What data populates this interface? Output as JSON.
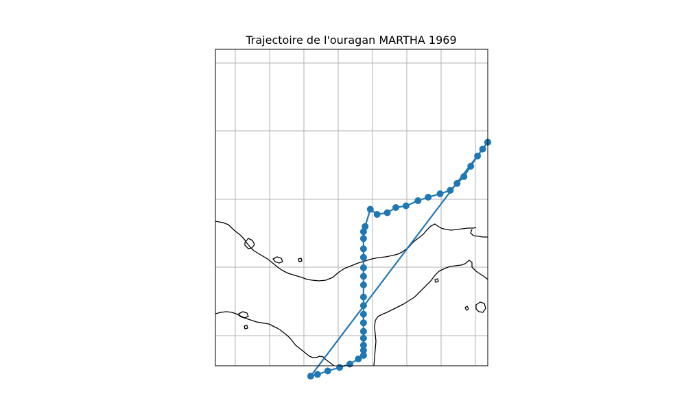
{
  "title": "Trajectoire de l'ouragan MARTHA 1969",
  "colors": {
    "track": "#1f77b4",
    "grid": "#b0b0b0",
    "coastline": "#000000",
    "frame": "#000000"
  },
  "chart_data": {
    "type": "scatter",
    "title": "Trajectoire de l'ouragan MARTHA 1969",
    "projection": "PlateCarree",
    "grid": true,
    "xlim": [
      -87.6,
      -79.6
    ],
    "ylim": [
      5.9,
      15.1
    ],
    "series": [
      {
        "marker": "circle",
        "line": true,
        "lon": [
          -79.6,
          -79.75,
          -79.9,
          -80.1,
          -80.3,
          -80.5,
          -80.7,
          -81.0,
          -81.35,
          -81.65,
          -82.0,
          -82.3,
          -82.55,
          -82.85,
          -83.05,
          -83.2,
          -83.25,
          -83.25,
          -83.25,
          -83.25,
          -83.25,
          -83.25,
          -83.25,
          -83.25,
          -83.25,
          -83.25,
          -83.25,
          -83.25,
          -83.25,
          -83.25,
          -83.25,
          -83.25,
          -83.4,
          -83.65,
          -83.95,
          -84.3,
          -84.6,
          -84.8,
          -79.6
        ],
        "lat": [
          12.4,
          12.2,
          12.0,
          11.7,
          11.4,
          11.2,
          11.0,
          10.9,
          10.8,
          10.7,
          10.55,
          10.5,
          10.35,
          10.3,
          10.45,
          9.95,
          9.8,
          9.6,
          9.3,
          9.05,
          8.75,
          8.5,
          8.25,
          7.9,
          7.65,
          7.4,
          7.15,
          6.9,
          6.7,
          6.5,
          6.35,
          6.2,
          6.1,
          5.95,
          5.85,
          5.75,
          5.65,
          5.6,
          12.4
        ]
      }
    ]
  }
}
